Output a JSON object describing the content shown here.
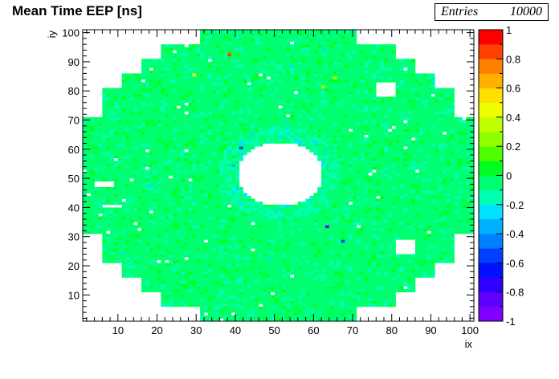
{
  "chart_data": {
    "type": "heatmap",
    "title": "Mean Time EEP [ns]",
    "xlabel": "ix",
    "ylabel": "iy",
    "xlim": [
      1,
      101
    ],
    "ylim": [
      1,
      101
    ],
    "x_ticks": [
      10,
      20,
      30,
      40,
      50,
      60,
      70,
      80,
      90,
      100
    ],
    "y_ticks": [
      10,
      20,
      30,
      40,
      50,
      60,
      70,
      80,
      90,
      100
    ],
    "zlim": [
      -1,
      1
    ],
    "colorbar_ticks": [
      "1",
      "0.8",
      "0.6",
      "0.4",
      "0.2",
      "0",
      "-0.2",
      "-0.4",
      "-0.6",
      "-0.8",
      "-1"
    ],
    "typical_value": -0.05,
    "inner_hole": {
      "center": [
        51,
        51
      ],
      "radius": 11
    },
    "outer_boundary_radius": 50,
    "notable_cells": [
      {
        "x": 38,
        "y": 92,
        "value": 0.85
      },
      {
        "x": 29,
        "y": 85,
        "value": 0.4
      },
      {
        "x": 63,
        "y": 33,
        "value": -0.85
      },
      {
        "x": 86,
        "y": 15,
        "value": -0.85
      },
      {
        "x": 41,
        "y": 60,
        "value": -0.6
      },
      {
        "x": 67,
        "y": 28,
        "value": -0.6
      },
      {
        "x": 14,
        "y": 86,
        "value": -0.45
      },
      {
        "x": 62,
        "y": 81,
        "value": 0.3
      },
      {
        "x": 65,
        "y": 84,
        "value": 0.3
      }
    ],
    "empty_regions": [
      {
        "x": [
          76,
          80
        ],
        "y": [
          78,
          82
        ]
      },
      {
        "x": [
          81,
          85
        ],
        "y": [
          24,
          28
        ]
      },
      {
        "x": [
          4,
          8
        ],
        "y": [
          47,
          48
        ]
      },
      {
        "x": [
          6,
          10
        ],
        "y": [
          40,
          40
        ]
      }
    ]
  },
  "stats": {
    "label": "Entries",
    "value": "10000"
  }
}
